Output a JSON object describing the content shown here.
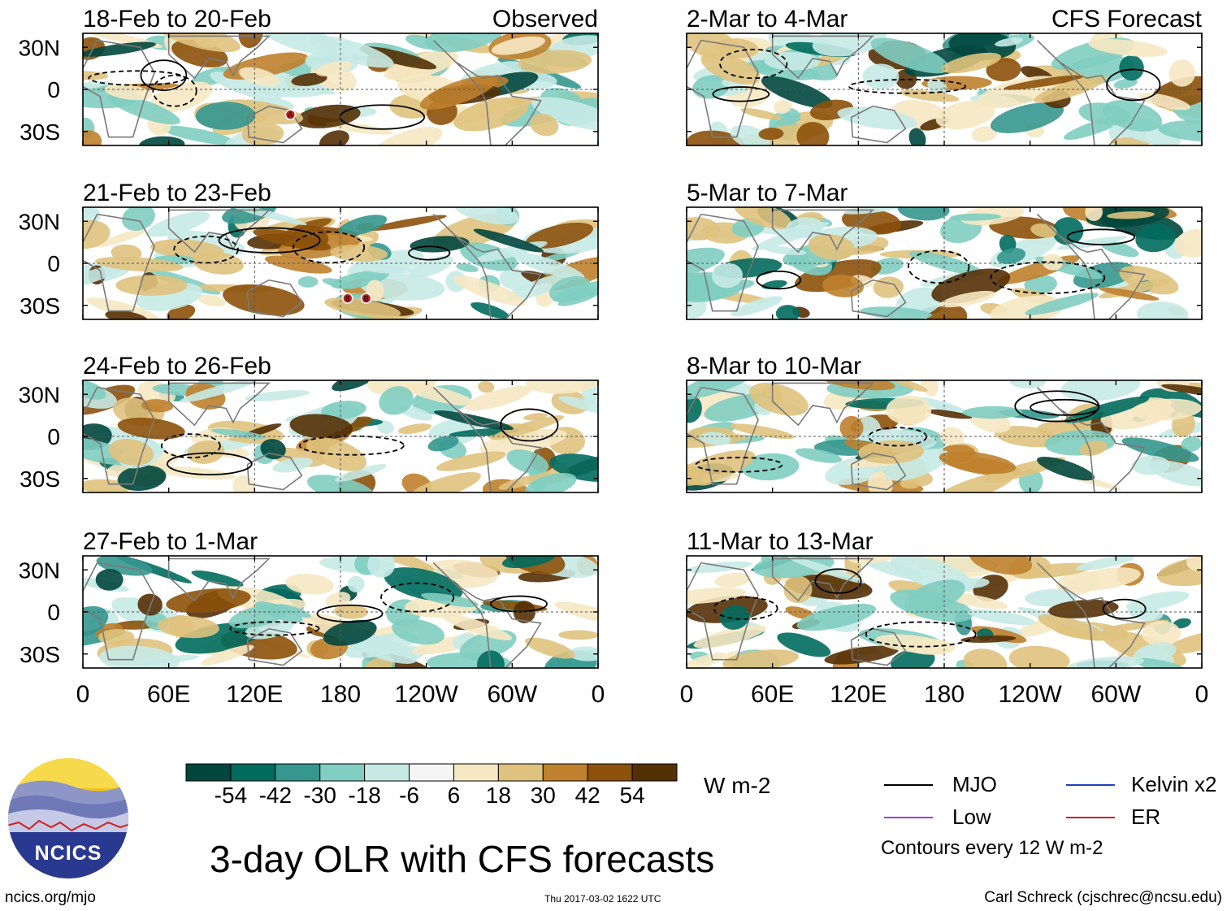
{
  "title": "3-day OLR with CFS forecasts",
  "branding": {
    "logo_text": "NCICS",
    "url": "ncics.org/mjo"
  },
  "timestamp": "Thu 2017-03-02 1622 UTC",
  "author": "Carl Schreck (cjschrec@ncsu.edu)",
  "colors": {
    "neg": [
      "#01473e",
      "#016b5e",
      "#35978f",
      "#80cdc1",
      "#c7eae5"
    ],
    "zero": "#f5f5f5",
    "pos": [
      "#f6e8c3",
      "#dfc27d",
      "#bf812d",
      "#8c510a",
      "#543005"
    ]
  },
  "colorbar": {
    "levels": [
      "-54",
      "-42",
      "-30",
      "-18",
      "-6",
      "6",
      "18",
      "30",
      "42",
      "54"
    ],
    "units": "W m-2"
  },
  "legend": {
    "items": [
      {
        "label": "MJO",
        "color": "#000000"
      },
      {
        "label": "Kelvin x2",
        "color": "#1f3fbf"
      },
      {
        "label": "Low",
        "color": "#9b40d8"
      },
      {
        "label": "ER",
        "color": "#d42020"
      }
    ],
    "contour_note": "Contours every 12 W m-2"
  },
  "chart_data": {
    "type": "heatmap",
    "variable": "OLR anomaly",
    "units": "W m-2",
    "y_ticks": [
      "30N",
      "0",
      "30S"
    ],
    "x_ticks": [
      "0",
      "60E",
      "120E",
      "180",
      "120W",
      "60W",
      "0"
    ],
    "columns": [
      {
        "label": "Observed",
        "panels": [
          {
            "period": "18-Feb to 20-Feb",
            "storm_markers": [
              "A"
            ]
          },
          {
            "period": "21-Feb to 23-Feb",
            "storm_markers": [
              "8",
              "B"
            ]
          },
          {
            "period": "24-Feb to 26-Feb",
            "storm_markers": []
          },
          {
            "period": "27-Feb to 1-Mar",
            "storm_markers": []
          }
        ]
      },
      {
        "label": "CFS Forecast",
        "panels": [
          {
            "period": "2-Mar to 4-Mar",
            "storm_markers": []
          },
          {
            "period": "5-Mar to 7-Mar",
            "storm_markers": []
          },
          {
            "period": "8-Mar to 10-Mar",
            "storm_markers": []
          },
          {
            "period": "11-Mar to 13-Mar",
            "storm_markers": []
          }
        ]
      }
    ]
  }
}
